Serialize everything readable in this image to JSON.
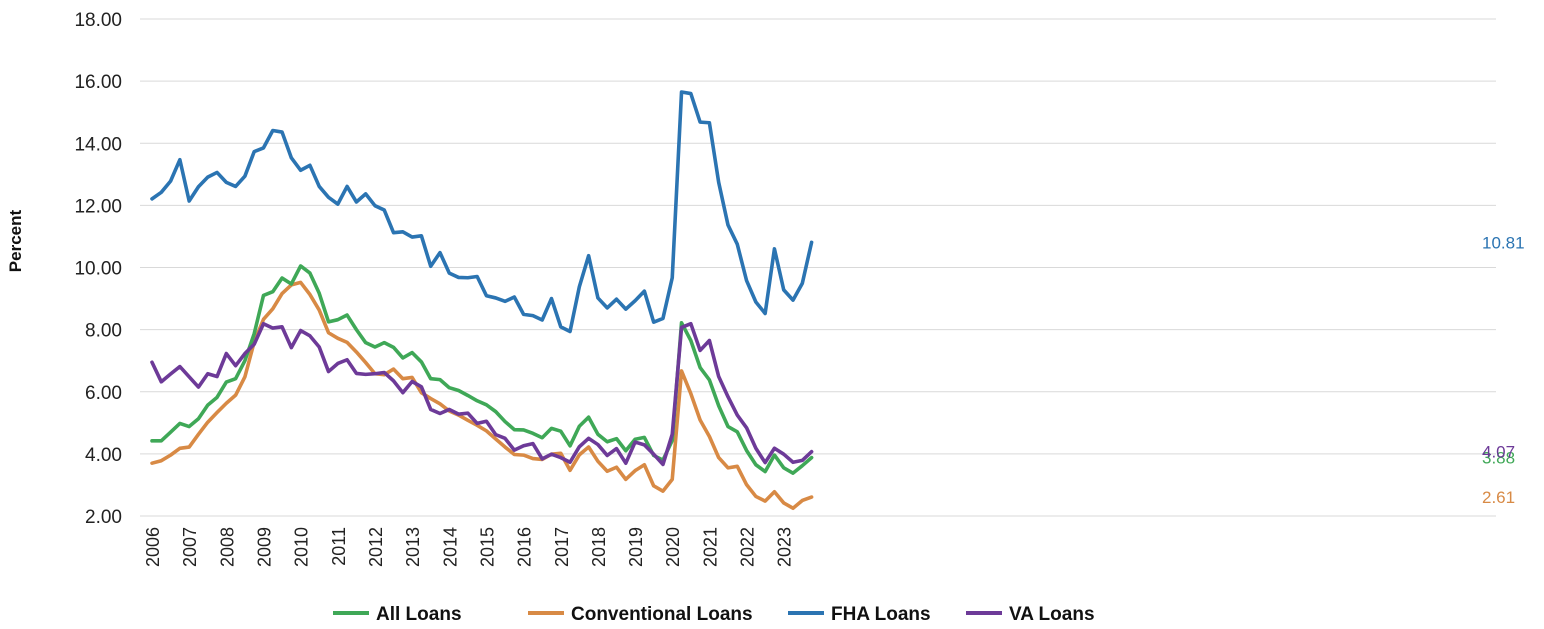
{
  "chart_data": {
    "type": "line",
    "title": "",
    "ylabel": "Percent",
    "xlabel": "",
    "ylim": [
      2,
      18
    ],
    "yticks": [
      "2.00",
      "4.00",
      "6.00",
      "8.00",
      "10.00",
      "12.00",
      "14.00",
      "16.00",
      "18.00"
    ],
    "xticks": [
      "2006",
      "2007",
      "2008",
      "2009",
      "2010",
      "2011",
      "2012",
      "2013",
      "2014",
      "2015",
      "2016",
      "2017",
      "2018",
      "2019",
      "2020",
      "2021",
      "2022",
      "2023"
    ],
    "grid": "horizontal",
    "legend_position": "bottom",
    "x_start": "2006 Q1",
    "frequency": "quarterly",
    "series": [
      {
        "name": "All Loans",
        "color": "#3fa857",
        "end_label": "3.88",
        "values": [
          4.42,
          4.42,
          4.7,
          4.98,
          4.88,
          5.13,
          5.57,
          5.82,
          6.31,
          6.42,
          7.0,
          7.87,
          9.1,
          9.22,
          9.66,
          9.47,
          10.05,
          9.82,
          9.17,
          8.25,
          8.32,
          8.47,
          8.0,
          7.58,
          7.44,
          7.58,
          7.43,
          7.09,
          7.26,
          6.96,
          6.42,
          6.39,
          6.13,
          6.04,
          5.88,
          5.71,
          5.58,
          5.36,
          5.04,
          4.78,
          4.77,
          4.66,
          4.52,
          4.82,
          4.73,
          4.26,
          4.89,
          5.18,
          4.63,
          4.39,
          4.49,
          4.1,
          4.47,
          4.53,
          3.95,
          3.8,
          4.43,
          8.22,
          7.65,
          6.78,
          6.38,
          5.55,
          4.88,
          4.71,
          4.11,
          3.65,
          3.43,
          3.96,
          3.55,
          3.38,
          3.62,
          3.88
        ]
      },
      {
        "name": "Conventional Loans",
        "color": "#d88a45",
        "end_label": "2.61",
        "values": [
          3.7,
          3.78,
          3.96,
          4.18,
          4.22,
          4.63,
          5.02,
          5.33,
          5.63,
          5.89,
          6.48,
          7.6,
          8.33,
          8.67,
          9.16,
          9.44,
          9.52,
          9.13,
          8.63,
          7.9,
          7.72,
          7.59,
          7.28,
          6.94,
          6.58,
          6.55,
          6.73,
          6.42,
          6.46,
          5.97,
          5.78,
          5.61,
          5.38,
          5.25,
          5.08,
          4.92,
          4.74,
          4.48,
          4.22,
          3.98,
          3.96,
          3.85,
          3.82,
          3.99,
          4.02,
          3.47,
          3.97,
          4.22,
          3.76,
          3.44,
          3.57,
          3.18,
          3.46,
          3.65,
          2.97,
          2.8,
          3.18,
          6.67,
          5.94,
          5.09,
          4.56,
          3.88,
          3.55,
          3.6,
          3.01,
          2.63,
          2.48,
          2.78,
          2.42,
          2.25,
          2.5,
          2.61
        ]
      },
      {
        "name": "FHA Loans",
        "color": "#2b74b2",
        "end_label": "10.81",
        "values": [
          12.21,
          12.42,
          12.78,
          13.47,
          12.14,
          12.6,
          12.91,
          13.06,
          12.74,
          12.61,
          12.94,
          13.73,
          13.85,
          14.41,
          14.36,
          13.53,
          13.13,
          13.29,
          12.61,
          12.26,
          12.04,
          12.61,
          12.11,
          12.37,
          11.99,
          11.85,
          11.12,
          11.15,
          10.98,
          11.02,
          10.04,
          10.48,
          9.82,
          9.68,
          9.67,
          9.71,
          9.09,
          9.02,
          8.91,
          9.05,
          8.49,
          8.45,
          8.31,
          9.0,
          8.09,
          7.94,
          9.38,
          10.38,
          9.02,
          8.7,
          8.98,
          8.66,
          8.93,
          9.24,
          8.24,
          8.36,
          9.67,
          15.65,
          15.6,
          14.68,
          14.66,
          12.74,
          11.37,
          10.75,
          9.58,
          8.89,
          8.52,
          10.6,
          9.28,
          8.95,
          9.49,
          10.81
        ]
      },
      {
        "name": "VA Loans",
        "color": "#6d3a98",
        "end_label": "4.07",
        "values": [
          6.95,
          6.32,
          6.57,
          6.81,
          6.48,
          6.15,
          6.58,
          6.49,
          7.23,
          6.84,
          7.23,
          7.53,
          8.19,
          8.05,
          8.09,
          7.42,
          7.97,
          7.8,
          7.44,
          6.65,
          6.91,
          7.03,
          6.59,
          6.56,
          6.58,
          6.62,
          6.35,
          5.97,
          6.33,
          6.16,
          5.43,
          5.3,
          5.43,
          5.28,
          5.31,
          4.98,
          5.05,
          4.62,
          4.5,
          4.12,
          4.26,
          4.33,
          3.84,
          3.99,
          3.88,
          3.73,
          4.23,
          4.5,
          4.3,
          3.95,
          4.17,
          3.7,
          4.38,
          4.29,
          3.99,
          3.66,
          4.63,
          8.07,
          8.19,
          7.33,
          7.65,
          6.49,
          5.84,
          5.25,
          4.84,
          4.18,
          3.72,
          4.18,
          3.99,
          3.73,
          3.79,
          4.07
        ]
      }
    ]
  }
}
